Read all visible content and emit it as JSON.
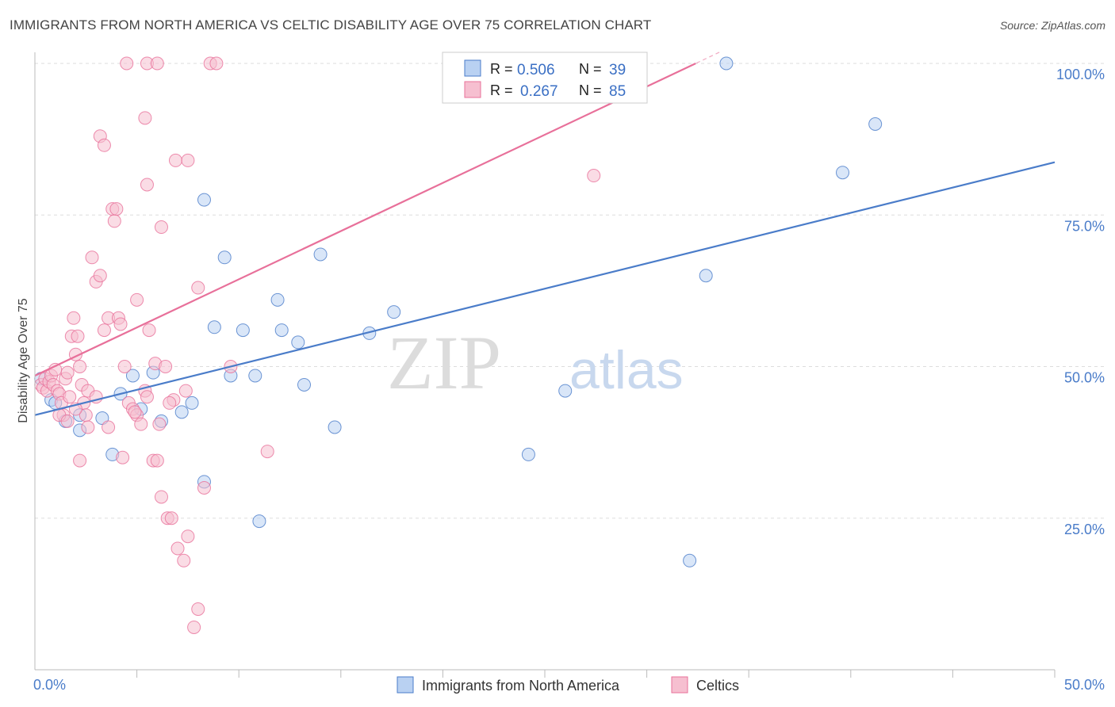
{
  "title": "IMMIGRANTS FROM NORTH AMERICA VS CELTIC DISABILITY AGE OVER 75 CORRELATION CHART",
  "source": "Source: ZipAtlas.com",
  "colors": {
    "blue": "#4a7cc9",
    "blue_fill": "#b9d1f2",
    "pink": "#e8709a",
    "pink_fill": "#f6bfd0",
    "grid": "#dddddd",
    "watermark": "#dcdcdc"
  },
  "watermark": {
    "zip": "ZIP",
    "atlas": "atlas"
  },
  "legend": {
    "r_label": "R =",
    "n_label": "N =",
    "rows": [
      {
        "r": "0.506",
        "n": "39"
      },
      {
        "r": "0.267",
        "n": "85"
      }
    ]
  },
  "bottom_legend": [
    "Immigrants from North America",
    "Celtics"
  ],
  "chart_data": {
    "type": "scatter",
    "ylabel": "Disability Age Over 75",
    "xlim": [
      0,
      50
    ],
    "ylim": [
      0,
      100
    ],
    "x_ticks": [
      {
        "value": 0,
        "label": "0.0%"
      },
      {
        "value": 50,
        "label": "50.0%"
      }
    ],
    "y_ticks": [
      {
        "value": 25,
        "label": "25.0%"
      },
      {
        "value": 50,
        "label": "50.0%"
      },
      {
        "value": 75,
        "label": "75.0%"
      },
      {
        "value": 100,
        "label": "100.0%"
      }
    ],
    "grid": true,
    "series": [
      {
        "name": "Immigrants from North America",
        "color": "#4a7cc9",
        "trend": {
          "x": [
            0,
            50
          ],
          "y": [
            42,
            83.7
          ]
        },
        "points": [
          [
            0.3,
            48
          ],
          [
            0.8,
            44.5
          ],
          [
            1.0,
            44
          ],
          [
            1.5,
            41
          ],
          [
            2.2,
            42
          ],
          [
            2.2,
            39.5
          ],
          [
            3.3,
            41.5
          ],
          [
            3.8,
            35.5
          ],
          [
            4.2,
            45.5
          ],
          [
            4.8,
            48.5
          ],
          [
            5.2,
            43
          ],
          [
            5.8,
            49
          ],
          [
            6.2,
            41
          ],
          [
            7.2,
            42.5
          ],
          [
            7.7,
            44
          ],
          [
            8.3,
            31
          ],
          [
            8.3,
            77.5
          ],
          [
            8.8,
            56.5
          ],
          [
            9.3,
            68
          ],
          [
            9.6,
            48.5
          ],
          [
            10.2,
            56
          ],
          [
            10.8,
            48.5
          ],
          [
            11.0,
            24.5
          ],
          [
            11.9,
            61
          ],
          [
            12.1,
            56
          ],
          [
            12.9,
            54
          ],
          [
            13.2,
            47
          ],
          [
            14.0,
            68.5
          ],
          [
            14.7,
            40
          ],
          [
            16.4,
            55.5
          ],
          [
            17.6,
            59
          ],
          [
            20.5,
            100
          ],
          [
            24.2,
            35.5
          ],
          [
            26.0,
            46
          ],
          [
            32.1,
            18
          ],
          [
            32.9,
            65
          ],
          [
            33.9,
            100
          ],
          [
            39.6,
            82
          ],
          [
            41.2,
            90
          ]
        ]
      },
      {
        "name": "Celtics",
        "color": "#e8709a",
        "trend": {
          "x": [
            0,
            32.4
          ],
          "y": [
            48.5,
            100
          ]
        },
        "points": [
          [
            0.3,
            47
          ],
          [
            0.4,
            46.5
          ],
          [
            0.5,
            48
          ],
          [
            0.6,
            46
          ],
          [
            0.7,
            47.5
          ],
          [
            0.8,
            48.5
          ],
          [
            0.9,
            47
          ],
          [
            1.0,
            49.5
          ],
          [
            1.1,
            46
          ],
          [
            1.2,
            45.5
          ],
          [
            1.3,
            44
          ],
          [
            1.4,
            42
          ],
          [
            1.5,
            48
          ],
          [
            1.6,
            49
          ],
          [
            1.7,
            45
          ],
          [
            1.8,
            55
          ],
          [
            1.9,
            58
          ],
          [
            2.0,
            52
          ],
          [
            2.1,
            55
          ],
          [
            2.2,
            50
          ],
          [
            2.3,
            47
          ],
          [
            2.4,
            44
          ],
          [
            2.5,
            42
          ],
          [
            2.6,
            40
          ],
          [
            2.8,
            68
          ],
          [
            3.0,
            64
          ],
          [
            3.2,
            65
          ],
          [
            3.4,
            56
          ],
          [
            3.6,
            58
          ],
          [
            3.8,
            76
          ],
          [
            3.9,
            74
          ],
          [
            4.0,
            76
          ],
          [
            4.1,
            58
          ],
          [
            4.2,
            57
          ],
          [
            4.4,
            50
          ],
          [
            4.6,
            44
          ],
          [
            4.8,
            43
          ],
          [
            5.0,
            42
          ],
          [
            5.2,
            40.5
          ],
          [
            5.4,
            46
          ],
          [
            5.5,
            45
          ],
          [
            5.8,
            34.5
          ],
          [
            6.0,
            34.5
          ],
          [
            6.2,
            28.5
          ],
          [
            6.5,
            25
          ],
          [
            6.7,
            25
          ],
          [
            7.0,
            20
          ],
          [
            7.3,
            18
          ],
          [
            7.5,
            22
          ],
          [
            7.8,
            7
          ],
          [
            8.0,
            10
          ],
          [
            4.5,
            100
          ],
          [
            5.5,
            100
          ],
          [
            6.0,
            100
          ],
          [
            8.6,
            100
          ],
          [
            8.9,
            100
          ],
          [
            3.2,
            88
          ],
          [
            3.4,
            86.5
          ],
          [
            5.4,
            91
          ],
          [
            5.5,
            80
          ],
          [
            6.9,
            84
          ],
          [
            7.5,
            84
          ],
          [
            6.2,
            73
          ],
          [
            8.0,
            63
          ],
          [
            5.0,
            61
          ],
          [
            5.6,
            56
          ],
          [
            5.9,
            50.5
          ],
          [
            6.4,
            50
          ],
          [
            6.8,
            44.5
          ],
          [
            7.4,
            46
          ],
          [
            9.6,
            50
          ],
          [
            11.4,
            36
          ],
          [
            8.3,
            30
          ],
          [
            27.4,
            81.5
          ],
          [
            1.2,
            42
          ],
          [
            1.6,
            41
          ],
          [
            2.0,
            43
          ],
          [
            2.6,
            46
          ],
          [
            3.0,
            45
          ],
          [
            3.6,
            40
          ],
          [
            4.3,
            35
          ],
          [
            4.9,
            42.5
          ],
          [
            6.1,
            40.5
          ],
          [
            6.6,
            44
          ],
          [
            2.2,
            34.5
          ]
        ]
      }
    ]
  }
}
